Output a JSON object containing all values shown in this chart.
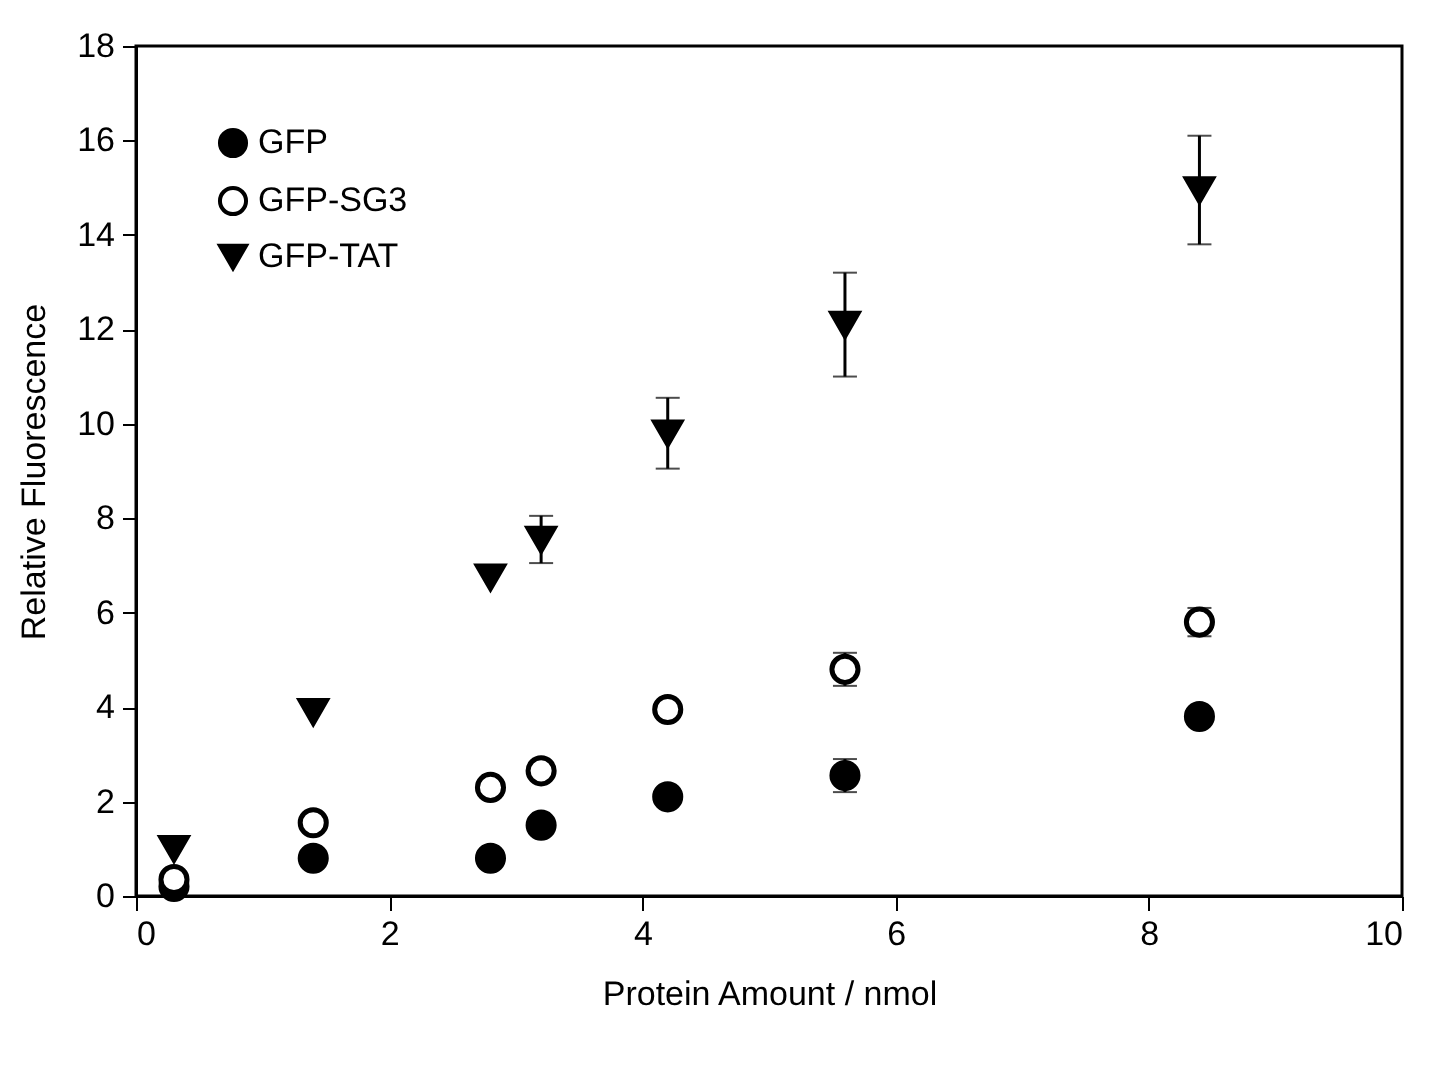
{
  "chart_data": {
    "type": "scatter",
    "xlabel": "Protein Amount / nmol",
    "ylabel": "Relative Fluorescence",
    "x": [
      0.3,
      1.4,
      2.8,
      3.2,
      4.2,
      5.6,
      8.4
    ],
    "series": [
      {
        "name": "GFP",
        "color": "#000000",
        "marker": "circle",
        "values": [
          0.2,
          0.8,
          0.8,
          1.5,
          2.1,
          2.55,
          3.8
        ],
        "errors": [
          null,
          null,
          null,
          null,
          null,
          0.35,
          null
        ]
      },
      {
        "name": "GFP-SG3",
        "color": "#000000",
        "marker": "circle",
        "values": [
          0.35,
          1.55,
          2.3,
          2.65,
          3.95,
          4.8,
          5.8
        ],
        "errors": [
          null,
          null,
          null,
          null,
          null,
          0.35,
          0.3
        ]
      },
      {
        "name": "GFP-TAT",
        "color": "#000000",
        "marker": "triangle",
        "values": [
          1.0,
          3.9,
          6.75,
          7.55,
          9.8,
          12.1,
          14.95
        ],
        "errors": [
          null,
          null,
          null,
          0.5,
          0.75,
          1.1,
          1.15
        ]
      }
    ],
    "xlim": [
      0,
      10
    ],
    "xticks": [
      0,
      2,
      4,
      6,
      8,
      10
    ],
    "ylim": [
      0,
      18
    ],
    "yticks": [
      0,
      2,
      4,
      6,
      8,
      10,
      12,
      14,
      16,
      18
    ],
    "grid": false,
    "legend": "top left"
  }
}
